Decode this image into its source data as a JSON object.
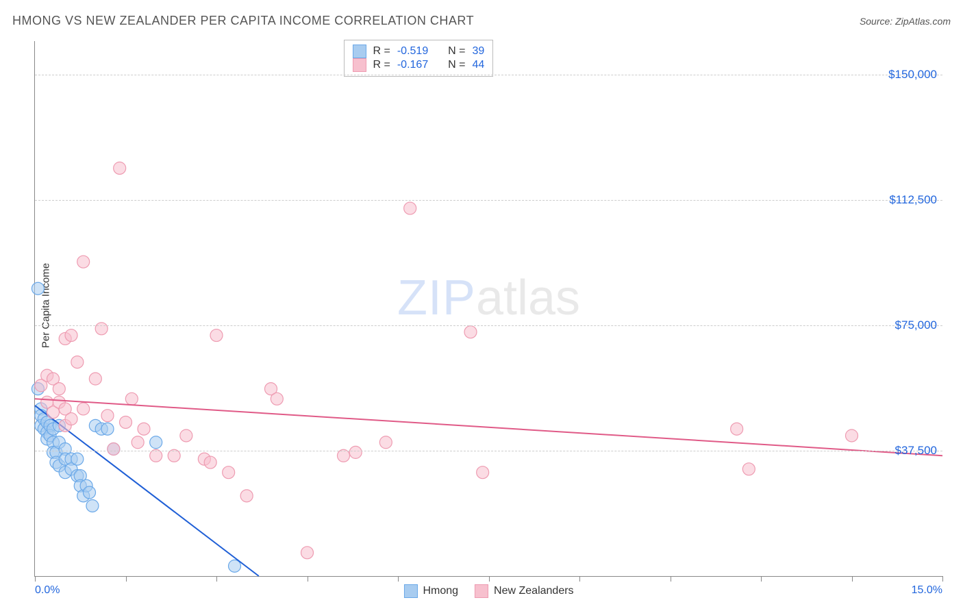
{
  "title": "HMONG VS NEW ZEALANDER PER CAPITA INCOME CORRELATION CHART",
  "source": "Source: ZipAtlas.com",
  "watermark": {
    "zip": "ZIP",
    "atlas": "atlas"
  },
  "chart": {
    "type": "scatter",
    "x_axis": {
      "min": 0.0,
      "max": 15.0,
      "label_min": "0.0%",
      "label_max": "15.0%",
      "ticks": [
        0,
        1.5,
        3.0,
        4.5,
        6.0,
        7.5,
        9.0,
        10.5,
        12.0,
        13.5,
        15.0
      ]
    },
    "y_axis": {
      "label": "Per Capita Income",
      "min": 0,
      "max": 160000,
      "gridlines": [
        {
          "value": 37500,
          "label": "$37,500"
        },
        {
          "value": 75000,
          "label": "$75,000"
        },
        {
          "value": 112500,
          "label": "$112,500"
        },
        {
          "value": 150000,
          "label": "$150,000"
        }
      ]
    },
    "colors": {
      "series_a_fill": "#a8ccf0",
      "series_a_stroke": "#6aa8e8",
      "series_b_fill": "#f7c0ce",
      "series_b_stroke": "#ee9bb1",
      "line_a": "#1f5fd6",
      "line_b": "#e05a87",
      "axis_text": "#2266dd",
      "grid": "#cccccc",
      "background": "#ffffff"
    },
    "marker_radius": 9,
    "marker_opacity": 0.55,
    "line_width": 2,
    "series": [
      {
        "name": "Hmong",
        "color_key": "a",
        "R": "-0.519",
        "N": "39",
        "trend": {
          "x1": 0.0,
          "y1": 51000,
          "x2": 3.7,
          "y2": 0
        },
        "points": [
          [
            0.05,
            86000
          ],
          [
            0.05,
            56000
          ],
          [
            0.1,
            50000
          ],
          [
            0.1,
            48000
          ],
          [
            0.1,
            45000
          ],
          [
            0.15,
            47000
          ],
          [
            0.15,
            44000
          ],
          [
            0.2,
            46000
          ],
          [
            0.2,
            43000
          ],
          [
            0.2,
            41000
          ],
          [
            0.25,
            45000
          ],
          [
            0.25,
            42000
          ],
          [
            0.3,
            44000
          ],
          [
            0.3,
            40000
          ],
          [
            0.3,
            37000
          ],
          [
            0.35,
            37000
          ],
          [
            0.35,
            34000
          ],
          [
            0.4,
            45000
          ],
          [
            0.4,
            40000
          ],
          [
            0.4,
            33000
          ],
          [
            0.5,
            38000
          ],
          [
            0.5,
            35000
          ],
          [
            0.5,
            31000
          ],
          [
            0.6,
            35000
          ],
          [
            0.6,
            32000
          ],
          [
            0.7,
            35000
          ],
          [
            0.7,
            30000
          ],
          [
            0.75,
            30000
          ],
          [
            0.75,
            27000
          ],
          [
            0.8,
            24000
          ],
          [
            0.85,
            27000
          ],
          [
            0.9,
            25000
          ],
          [
            0.95,
            21000
          ],
          [
            1.0,
            45000
          ],
          [
            1.1,
            44000
          ],
          [
            1.2,
            44000
          ],
          [
            1.3,
            38000
          ],
          [
            2.0,
            40000
          ],
          [
            3.3,
            3000
          ]
        ]
      },
      {
        "name": "New Zealanders",
        "color_key": "b",
        "R": "-0.167",
        "N": "44",
        "trend": {
          "x1": 0.0,
          "y1": 53000,
          "x2": 15.0,
          "y2": 36000
        },
        "points": [
          [
            0.1,
            57000
          ],
          [
            0.2,
            60000
          ],
          [
            0.2,
            52000
          ],
          [
            0.3,
            59000
          ],
          [
            0.3,
            49000
          ],
          [
            0.4,
            56000
          ],
          [
            0.4,
            52000
          ],
          [
            0.5,
            71000
          ],
          [
            0.5,
            50000
          ],
          [
            0.5,
            45000
          ],
          [
            0.6,
            72000
          ],
          [
            0.6,
            47000
          ],
          [
            0.7,
            64000
          ],
          [
            0.8,
            94000
          ],
          [
            0.8,
            50000
          ],
          [
            1.0,
            59000
          ],
          [
            1.1,
            74000
          ],
          [
            1.2,
            48000
          ],
          [
            1.3,
            38000
          ],
          [
            1.4,
            122000
          ],
          [
            1.5,
            46000
          ],
          [
            1.6,
            53000
          ],
          [
            1.7,
            40000
          ],
          [
            1.8,
            44000
          ],
          [
            2.0,
            36000
          ],
          [
            2.3,
            36000
          ],
          [
            2.5,
            42000
          ],
          [
            2.8,
            35000
          ],
          [
            2.9,
            34000
          ],
          [
            3.0,
            72000
          ],
          [
            3.2,
            31000
          ],
          [
            3.5,
            24000
          ],
          [
            3.9,
            56000
          ],
          [
            4.0,
            53000
          ],
          [
            4.5,
            7000
          ],
          [
            5.1,
            36000
          ],
          [
            5.3,
            37000
          ],
          [
            5.8,
            40000
          ],
          [
            6.2,
            110000
          ],
          [
            7.2,
            73000
          ],
          [
            7.4,
            31000
          ],
          [
            11.6,
            44000
          ],
          [
            11.8,
            32000
          ],
          [
            13.5,
            42000
          ]
        ]
      }
    ],
    "top_legend": {
      "R_label": "R =",
      "N_label": "N ="
    },
    "bottom_legend": {
      "a": "Hmong",
      "b": "New Zealanders"
    }
  }
}
